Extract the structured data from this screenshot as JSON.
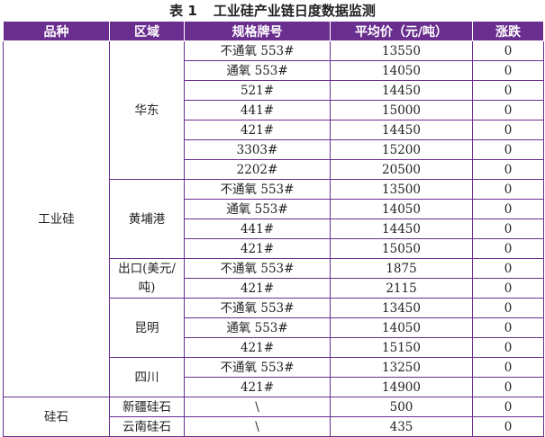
{
  "caption": {
    "number": "表 1",
    "title": "工业硅产业链日度数据监测"
  },
  "headers": [
    "品种",
    "区域",
    "规格牌号",
    "平均价（元/吨）",
    "涨跌"
  ],
  "groups": [
    {
      "product": "工业硅",
      "regions": [
        {
          "name": "华东",
          "rows": [
            {
              "spec": "不通氧 553#",
              "price": "13550",
              "change": "0"
            },
            {
              "spec": "通氧 553#",
              "price": "14050",
              "change": "0"
            },
            {
              "spec": "521#",
              "price": "14450",
              "change": "0"
            },
            {
              "spec": "441#",
              "price": "15000",
              "change": "0"
            },
            {
              "spec": "421#",
              "price": "14450",
              "change": "0"
            },
            {
              "spec": "3303#",
              "price": "15200",
              "change": "0"
            },
            {
              "spec": "2202#",
              "price": "20500",
              "change": "0"
            }
          ]
        },
        {
          "name": "黄埔港",
          "rows": [
            {
              "spec": "不通氧 553#",
              "price": "13500",
              "change": "0"
            },
            {
              "spec": "通氧 553#",
              "price": "14050",
              "change": "0"
            },
            {
              "spec": "441#",
              "price": "14450",
              "change": "0"
            },
            {
              "spec": "421#",
              "price": "15050",
              "change": "0"
            }
          ]
        },
        {
          "name": "出口(美元/吨)",
          "rows": [
            {
              "spec": "不通氧 553#",
              "price": "1875",
              "change": "0"
            },
            {
              "spec": "421#",
              "price": "2115",
              "change": "0"
            }
          ]
        },
        {
          "name": "昆明",
          "rows": [
            {
              "spec": "不通氧 553#",
              "price": "13450",
              "change": "0"
            },
            {
              "spec": "通氧 553#",
              "price": "14050",
              "change": "0"
            },
            {
              "spec": "421#",
              "price": "15150",
              "change": "0"
            }
          ]
        },
        {
          "name": "四川",
          "rows": [
            {
              "spec": "不通氧 553#",
              "price": "13250",
              "change": "0"
            },
            {
              "spec": "421#",
              "price": "14900",
              "change": "0"
            }
          ]
        }
      ]
    },
    {
      "product": "硅石",
      "regions": [
        {
          "name": "新疆硅石",
          "rows": [
            {
              "spec": "\\",
              "price": "500",
              "change": "0"
            }
          ]
        },
        {
          "name": "云南硅石",
          "rows": [
            {
              "spec": "\\",
              "price": "435",
              "change": "0"
            }
          ]
        }
      ]
    }
  ]
}
